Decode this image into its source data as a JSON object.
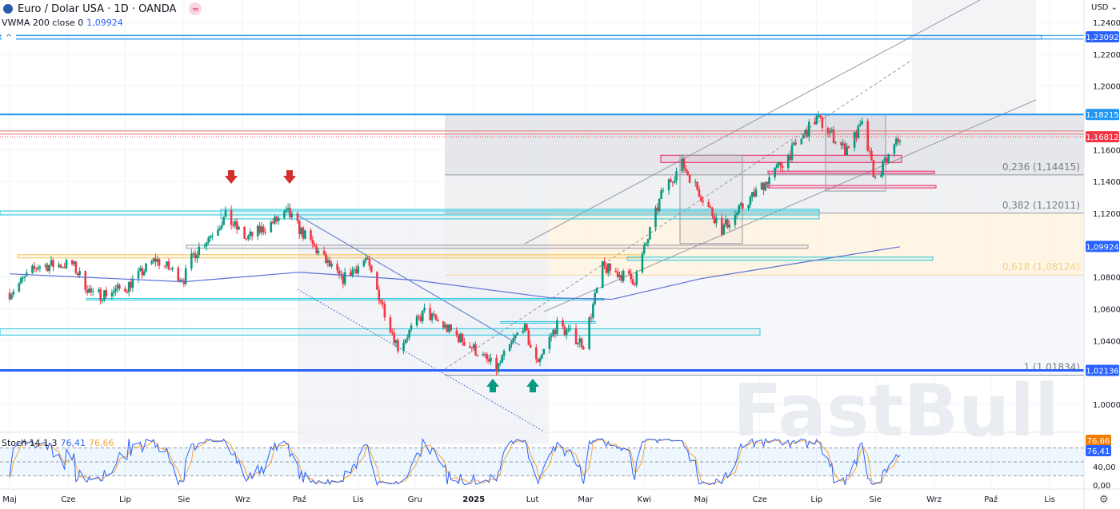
{
  "header": {
    "symbol_title": "Euro / Dolar USA · 1D · OANDA",
    "indicator_label": "VWMA 200 close 0",
    "indicator_value": "1,09924",
    "currency": "USD"
  },
  "stoch": {
    "label": "Stoch 14 1 3",
    "k_value": "76,41",
    "d_value": "76,66",
    "k_badge": "76,41",
    "d_badge": "76,66",
    "ticks": [
      "40,00",
      "0,00"
    ]
  },
  "colors": {
    "up": "#089981",
    "down": "#f23645",
    "vwma": "#5b6fd6",
    "stoch_k": "#2962ff",
    "stoch_d": "#f7a43a",
    "level_blue": "#2962ff",
    "current_price": "#f23645"
  },
  "price_badges": [
    {
      "label": "1,23092",
      "price": 1.23092,
      "color": "#2962ff"
    },
    {
      "label": "1,18215",
      "price": 1.18215,
      "color": "#2196f3"
    },
    {
      "label": "1,16812",
      "price": 1.16812,
      "color": "#f23645"
    },
    {
      "label": "1,09924",
      "price": 1.09924,
      "color": "#2962ff"
    },
    {
      "label": "1,02136",
      "price": 1.02136,
      "color": "#2962ff"
    }
  ],
  "fib_labels": [
    {
      "text": "0,236 (1,14415)",
      "price": 1.14415
    },
    {
      "text": "0,382 (1,12011)",
      "price": 1.12011
    },
    {
      "text": "0,618 (1,08124)",
      "price": 1.08124
    },
    {
      "text": "1 (1,01834)",
      "price": 1.01834
    }
  ],
  "watermark": "FastBull",
  "chart_data": {
    "type": "candlestick",
    "title": "Euro / Dolar USA · 1D · OANDA",
    "ylim": [
      0.985,
      1.245
    ],
    "y_ticks": [
      "1,24000",
      "1,22000",
      "1,20000",
      "1,16000",
      "1,14000",
      "1,12000",
      "1,08000",
      "1,06000",
      "1,04000",
      "1,00000"
    ],
    "x_ticks": [
      "Maj",
      "Cze",
      "Lip",
      "Sie",
      "Wrz",
      "Paź",
      "Lis",
      "Gru",
      "2025",
      "Lut",
      "Mar",
      "Kwi",
      "Maj",
      "Cze",
      "Lip",
      "Sie",
      "Wrz",
      "Paź",
      "Lis"
    ],
    "close_path": [
      [
        "2024-05-01",
        1.07
      ],
      [
        "2024-05-16",
        1.087
      ],
      [
        "2024-06-03",
        1.088
      ],
      [
        "2024-06-14",
        1.068
      ],
      [
        "2024-07-01",
        1.073
      ],
      [
        "2024-07-17",
        1.091
      ],
      [
        "2024-08-01",
        1.079
      ],
      [
        "2024-08-06",
        1.094
      ],
      [
        "2024-08-23",
        1.118
      ],
      [
        "2024-09-03",
        1.104
      ],
      [
        "2024-09-25",
        1.12
      ],
      [
        "2024-10-01",
        1.11
      ],
      [
        "2024-10-23",
        1.078
      ],
      [
        "2024-11-05",
        1.091
      ],
      [
        "2024-11-22",
        1.036
      ],
      [
        "2024-12-06",
        1.058
      ],
      [
        "2024-12-31",
        1.036
      ],
      [
        "2025-01-13",
        1.022
      ],
      [
        "2025-01-27",
        1.05
      ],
      [
        "2025-02-03",
        1.026
      ],
      [
        "2025-02-14",
        1.05
      ],
      [
        "2025-02-28",
        1.038
      ],
      [
        "2025-03-10",
        1.086
      ],
      [
        "2025-03-27",
        1.078
      ],
      [
        "2025-04-11",
        1.135
      ],
      [
        "2025-04-21",
        1.151
      ],
      [
        "2025-05-12",
        1.11
      ],
      [
        "2025-06-02",
        1.137
      ],
      [
        "2025-06-16",
        1.156
      ],
      [
        "2025-07-01",
        1.18
      ],
      [
        "2025-07-16",
        1.16
      ],
      [
        "2025-07-25",
        1.175
      ],
      [
        "2025-08-01",
        1.141
      ],
      [
        "2025-08-14",
        1.168
      ]
    ],
    "vwma_path": [
      [
        "2024-05-01",
        1.082
      ],
      [
        "2024-08-01",
        1.077
      ],
      [
        "2024-10-01",
        1.083
      ],
      [
        "2024-12-01",
        1.078
      ],
      [
        "2025-02-10",
        1.067
      ],
      [
        "2025-03-15",
        1.066
      ],
      [
        "2025-05-01",
        1.079
      ],
      [
        "2025-08-14",
        1.099
      ]
    ],
    "stoch_levels": [
      80,
      50,
      20
    ],
    "stoch_ylim": [
      0,
      100
    ]
  }
}
